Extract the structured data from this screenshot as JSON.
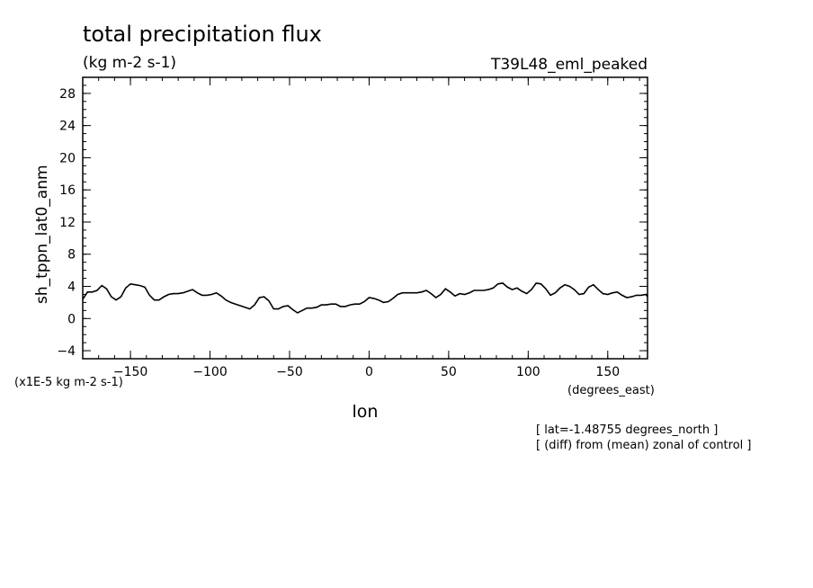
{
  "chart_data": {
    "type": "line",
    "title": "total precipitation flux",
    "units": "(kg m-2 s-1)",
    "run_label": "T39L48_eml_peaked",
    "xlabel": "lon",
    "xunits": "(degrees_east)",
    "ylabel": "sh_tppn_lat0_anm",
    "yscale_label": "(x1E-5 kg m-2 s-1)",
    "xlim": [
      -180,
      175
    ],
    "ylim": [
      -5,
      30
    ],
    "xticks": [
      -150,
      -100,
      -50,
      0,
      50,
      100,
      150
    ],
    "xtick_labels": [
      "-150",
      "-100",
      "-50",
      "0",
      "50",
      "100",
      "150"
    ],
    "yticks": [
      -4,
      0,
      4,
      8,
      12,
      16,
      20,
      24,
      28
    ],
    "ytick_labels": [
      "-4",
      "0",
      "4",
      "8",
      "12",
      "16",
      "20",
      "24",
      "28"
    ],
    "notes": [
      "[ lat=-1.48755 degrees_north ]",
      "[ (diff) from (mean) zonal of control ]"
    ],
    "series": [
      {
        "name": "sh_tppn_lat0_anm",
        "x": [
          -180,
          -177,
          -174,
          -171,
          -168,
          -165,
          -162,
          -159,
          -156,
          -153,
          -150,
          -147,
          -144,
          -141,
          -138,
          -135,
          -132,
          -129,
          -126,
          -123,
          -120,
          -117,
          -114,
          -111,
          -108,
          -105,
          -102,
          -99,
          -96,
          -93,
          -90,
          -87,
          -84,
          -81,
          -78,
          -75,
          -72,
          -69,
          -66,
          -63,
          -60,
          -57,
          -54,
          -51,
          -48,
          -45,
          -42,
          -39,
          -36,
          -33,
          -30,
          -27,
          -24,
          -21,
          -18,
          -15,
          -12,
          -9,
          -6,
          -3,
          0,
          3,
          6,
          9,
          12,
          15,
          18,
          21,
          24,
          27,
          30,
          33,
          36,
          39,
          42,
          45,
          48,
          51,
          54,
          57,
          60,
          63,
          66,
          69,
          72,
          75,
          78,
          81,
          84,
          87,
          90,
          93,
          96,
          99,
          102,
          105,
          108,
          111,
          114,
          117,
          120,
          123,
          126,
          129,
          132,
          135,
          138,
          141,
          144,
          147,
          150,
          153,
          156,
          159,
          162,
          165,
          168,
          171,
          174,
          175
        ],
        "values": [
          2.4,
          3.3,
          3.3,
          3.5,
          4.1,
          3.7,
          2.7,
          2.3,
          2.7,
          3.8,
          4.3,
          4.2,
          4.1,
          3.9,
          2.9,
          2.3,
          2.3,
          2.7,
          3.0,
          3.1,
          3.1,
          3.2,
          3.4,
          3.6,
          3.2,
          2.9,
          2.9,
          3.0,
          3.2,
          2.8,
          2.3,
          2.0,
          1.8,
          1.6,
          1.4,
          1.2,
          1.7,
          2.6,
          2.7,
          2.2,
          1.2,
          1.2,
          1.5,
          1.6,
          1.1,
          0.7,
          1.0,
          1.3,
          1.3,
          1.4,
          1.7,
          1.7,
          1.8,
          1.8,
          1.5,
          1.5,
          1.7,
          1.8,
          1.8,
          2.1,
          2.6,
          2.5,
          2.3,
          2.0,
          2.1,
          2.5,
          3.0,
          3.2,
          3.2,
          3.2,
          3.2,
          3.3,
          3.5,
          3.1,
          2.6,
          3.0,
          3.7,
          3.3,
          2.8,
          3.1,
          3.0,
          3.2,
          3.5,
          3.5,
          3.5,
          3.6,
          3.8,
          4.3,
          4.4,
          3.9,
          3.6,
          3.8,
          3.4,
          3.1,
          3.6,
          4.4,
          4.3,
          3.7,
          2.9,
          3.2,
          3.8,
          4.2,
          4.0,
          3.6,
          3.0,
          3.1,
          3.9,
          4.2,
          3.6,
          3.1,
          3.0,
          3.2,
          3.3,
          2.9,
          2.6,
          2.7,
          2.9,
          2.9,
          3.0,
          2.7
        ]
      }
    ]
  }
}
